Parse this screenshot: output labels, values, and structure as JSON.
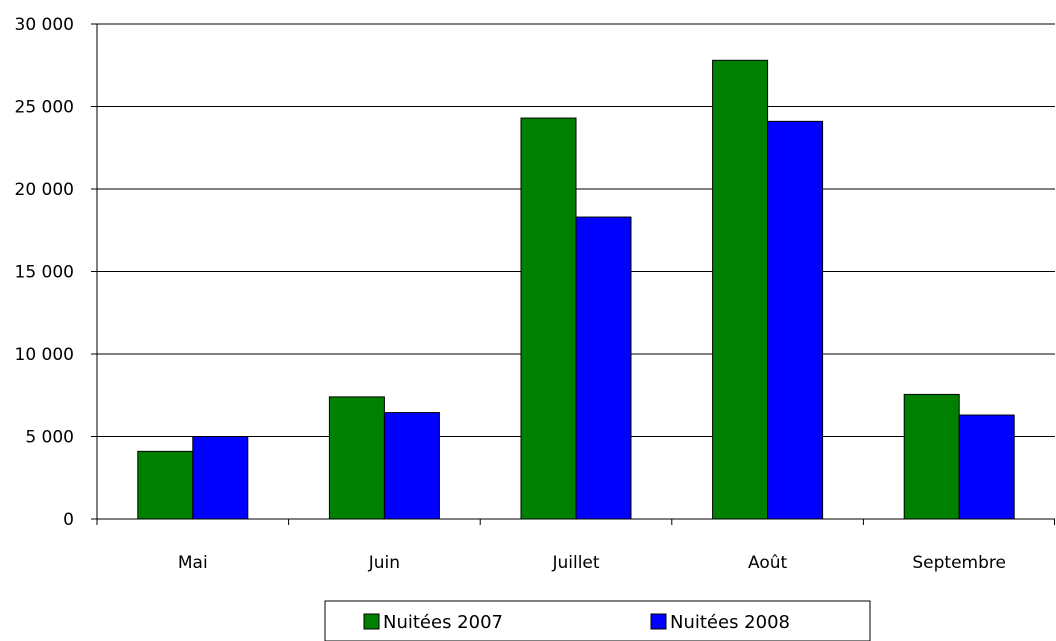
{
  "chart_data": {
    "type": "bar",
    "categories": [
      "Mai",
      "Juin",
      "Juillet",
      "Août",
      "Septembre"
    ],
    "series": [
      {
        "name": "Nuitées 2007",
        "color": "#008000",
        "values": [
          4100,
          7400,
          24300,
          27800,
          7550
        ]
      },
      {
        "name": "Nuitées 2008",
        "color": "#0000ff",
        "values": [
          5000,
          6450,
          18300,
          24100,
          6300
        ]
      }
    ],
    "ylim": [
      0,
      30000
    ],
    "yticks": [
      0,
      5000,
      10000,
      15000,
      20000,
      25000,
      30000
    ],
    "ytick_labels": [
      "0",
      "5 000",
      "10 000",
      "15 000",
      "20 000",
      "25 000",
      "30 000"
    ],
    "grid": true,
    "legend_position": "bottom"
  }
}
